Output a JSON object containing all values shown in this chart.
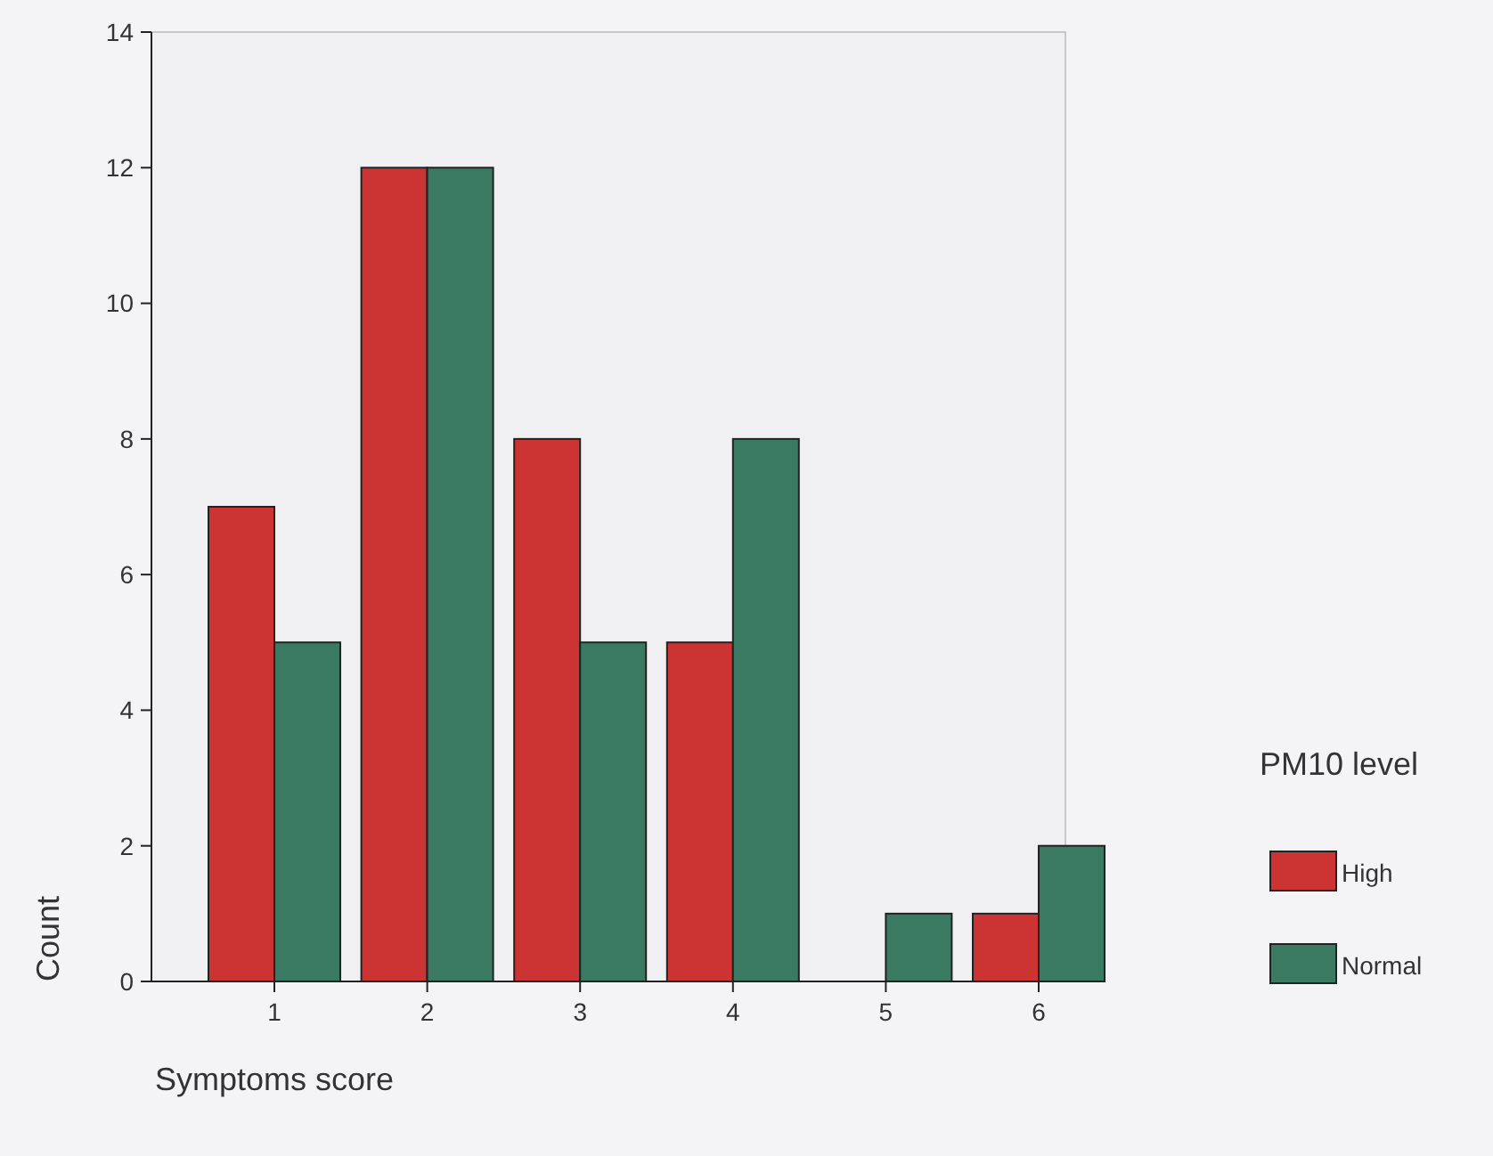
{
  "chart_data": {
    "type": "bar",
    "xlabel": "Symptoms score",
    "ylabel": "Count",
    "legend_title": "PM10 level",
    "categories": [
      "1",
      "2",
      "3",
      "4",
      "5",
      "6"
    ],
    "series": [
      {
        "name": "High",
        "color": "#cc3333",
        "values": [
          7,
          12,
          8,
          5,
          0,
          1
        ]
      },
      {
        "name": "Normal",
        "color": "#3b7a62",
        "values": [
          5,
          12,
          5,
          8,
          1,
          2
        ]
      }
    ],
    "ylim": [
      0,
      14
    ],
    "yticks": [
      0,
      2,
      4,
      6,
      8,
      10,
      12,
      14
    ],
    "grid": false,
    "legend": "right"
  }
}
